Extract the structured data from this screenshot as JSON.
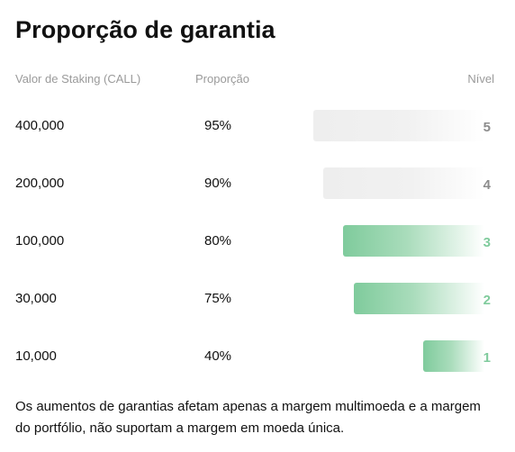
{
  "title": "Proporção de garantia",
  "headers": {
    "value": "Valor de Staking (CALL)",
    "ratio": "Proporção",
    "level": "Nível"
  },
  "rows": [
    {
      "value": "400,000",
      "ratio": "95%",
      "level": "5",
      "bar_fill": 0.95,
      "active": false
    },
    {
      "value": "200,000",
      "ratio": "90%",
      "level": "4",
      "bar_fill": 0.9,
      "active": false
    },
    {
      "value": "100,000",
      "ratio": "80%",
      "level": "3",
      "bar_fill": 0.8,
      "active": true
    },
    {
      "value": "30,000",
      "ratio": "75%",
      "level": "2",
      "bar_fill": 0.75,
      "active": true
    },
    {
      "value": "10,000",
      "ratio": "40%",
      "level": "1",
      "bar_fill": 0.4,
      "active": true
    }
  ],
  "note": "Os aumentos de garantias afetam apenas a margem multimoeda e a margem do portfólio, não suportam a margem em moeda única.",
  "colors": {
    "active_bar": "#7fcb9c",
    "inactive_bar": "#eeeeee",
    "active_level": "#7fcb9c",
    "inactive_level": "#8c8c8c"
  }
}
